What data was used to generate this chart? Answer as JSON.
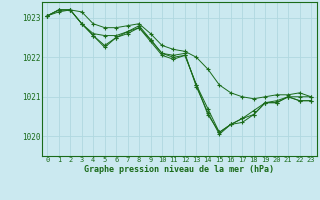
{
  "background_color": "#cbe9f0",
  "grid_color": "#b0d8e0",
  "line_color": "#1a6b1a",
  "xlabel": "Graphe pression niveau de la mer (hPa)",
  "xlabel_color": "#1a6b1a",
  "ylim": [
    1019.5,
    1023.4
  ],
  "xlim": [
    -0.5,
    23.5
  ],
  "yticks": [
    1020,
    1021,
    1022,
    1023
  ],
  "xticks": [
    0,
    1,
    2,
    3,
    4,
    5,
    6,
    7,
    8,
    9,
    10,
    11,
    12,
    13,
    14,
    15,
    16,
    17,
    18,
    19,
    20,
    21,
    22,
    23
  ],
  "series": [
    [
      1023.05,
      1023.15,
      1023.2,
      1023.15,
      1022.85,
      1022.75,
      1022.75,
      1022.8,
      1022.85,
      1022.6,
      1022.3,
      1022.2,
      1022.15,
      1022.0,
      1021.7,
      1021.3,
      1021.1,
      1021.0,
      1020.95,
      1021.0,
      1021.05,
      1021.05,
      1021.1,
      1021.0
    ],
    [
      1023.05,
      1023.2,
      1023.2,
      1022.85,
      1022.6,
      1022.55,
      1022.55,
      1022.65,
      1022.75,
      1022.45,
      1022.1,
      1022.0,
      1022.05,
      1021.3,
      1020.55,
      1020.1,
      1020.3,
      1020.45,
      1020.55,
      1020.85,
      1020.85,
      1021.0,
      1020.9,
      1020.9
    ],
    [
      1023.05,
      1023.2,
      1023.2,
      1022.85,
      1022.55,
      1022.3,
      1022.5,
      1022.6,
      1022.75,
      1022.4,
      1022.05,
      1021.95,
      1022.05,
      1021.3,
      1020.7,
      1020.1,
      1020.3,
      1020.35,
      1020.55,
      1020.85,
      1020.85,
      1021.0,
      1020.9,
      1020.9
    ],
    [
      1023.05,
      1023.2,
      1023.2,
      1022.85,
      1022.55,
      1022.25,
      1022.5,
      1022.65,
      1022.8,
      1022.45,
      1022.1,
      1022.05,
      1022.1,
      1021.25,
      1020.6,
      1020.05,
      1020.3,
      1020.45,
      1020.65,
      1020.85,
      1020.9,
      1021.0,
      1021.0,
      1021.0
    ]
  ]
}
